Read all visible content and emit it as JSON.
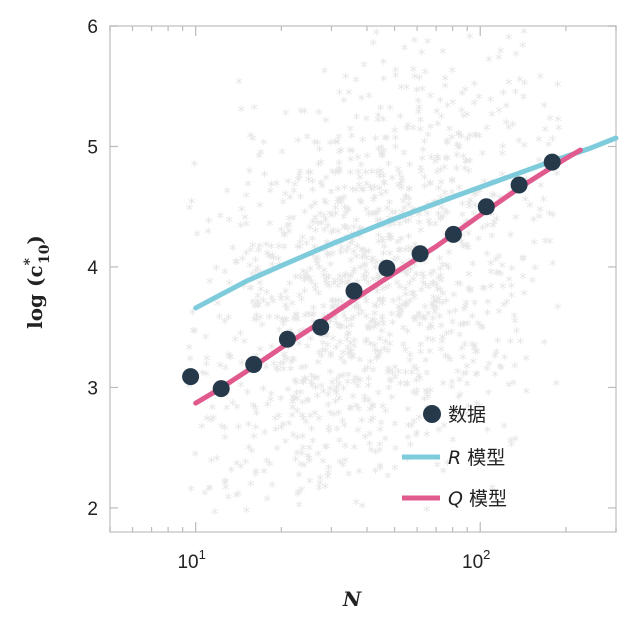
{
  "chart_data": {
    "type": "scatter",
    "xlabel": "N",
    "ylabel": "log (c*10)",
    "ylabel_parts": {
      "base": "log (c",
      "sup": "*",
      "sub": "10",
      "close": ")"
    },
    "xscale": "log",
    "xlim": [
      5,
      300
    ],
    "ylim": [
      1.8,
      6
    ],
    "yticks": [
      2,
      3,
      4,
      5,
      6
    ],
    "ytick_labels": [
      "2",
      "3",
      "4",
      "5",
      "6"
    ],
    "xticks": [
      10,
      100
    ],
    "xtick_labels": [
      {
        "base": "10",
        "exp": "1"
      },
      {
        "base": "10",
        "exp": "2"
      }
    ],
    "legend_position": "lower-right",
    "colors": {
      "background_points": "#e6e6e6",
      "data_points": "#25394b",
      "R_model": "#7ecbdc",
      "Q_model": "#e05a8e",
      "frame": "#cccccc"
    },
    "series": [
      {
        "name": "数据",
        "kind": "points",
        "x": [
          9.6,
          12.3,
          16.0,
          21.0,
          27.5,
          36.0,
          47.0,
          61.5,
          80.5,
          105.0,
          137.0,
          179.0
        ],
        "y": [
          3.09,
          2.99,
          3.19,
          3.4,
          3.5,
          3.8,
          3.99,
          4.11,
          4.27,
          4.5,
          4.68,
          4.87
        ]
      },
      {
        "name": "R 模型",
        "name_italic": "R",
        "name_rest": " 模型",
        "kind": "line",
        "x": [
          10,
          15,
          20,
          30,
          50,
          80,
          120,
          180,
          240,
          300
        ],
        "y": [
          3.66,
          3.88,
          4.01,
          4.19,
          4.4,
          4.58,
          4.73,
          4.88,
          4.98,
          5.07
        ]
      },
      {
        "name": "Q 模型",
        "name_italic": "Q",
        "name_rest": " 模型",
        "kind": "line",
        "x": [
          10,
          12,
          15,
          20,
          27,
          36,
          50,
          70,
          100,
          140,
          200,
          225
        ],
        "y": [
          2.87,
          2.98,
          3.13,
          3.33,
          3.53,
          3.73,
          3.95,
          4.17,
          4.43,
          4.67,
          4.9,
          4.97
        ]
      }
    ],
    "background_cloud": {
      "description_free": true,
      "count": 1400,
      "x_center_log10": 1.62,
      "x_spread_log10": 0.32,
      "y_center": 3.85,
      "y_spread": 0.85,
      "ymin": 1.95,
      "ymax": 6.0,
      "xmin": 9,
      "xmax": 190
    }
  }
}
